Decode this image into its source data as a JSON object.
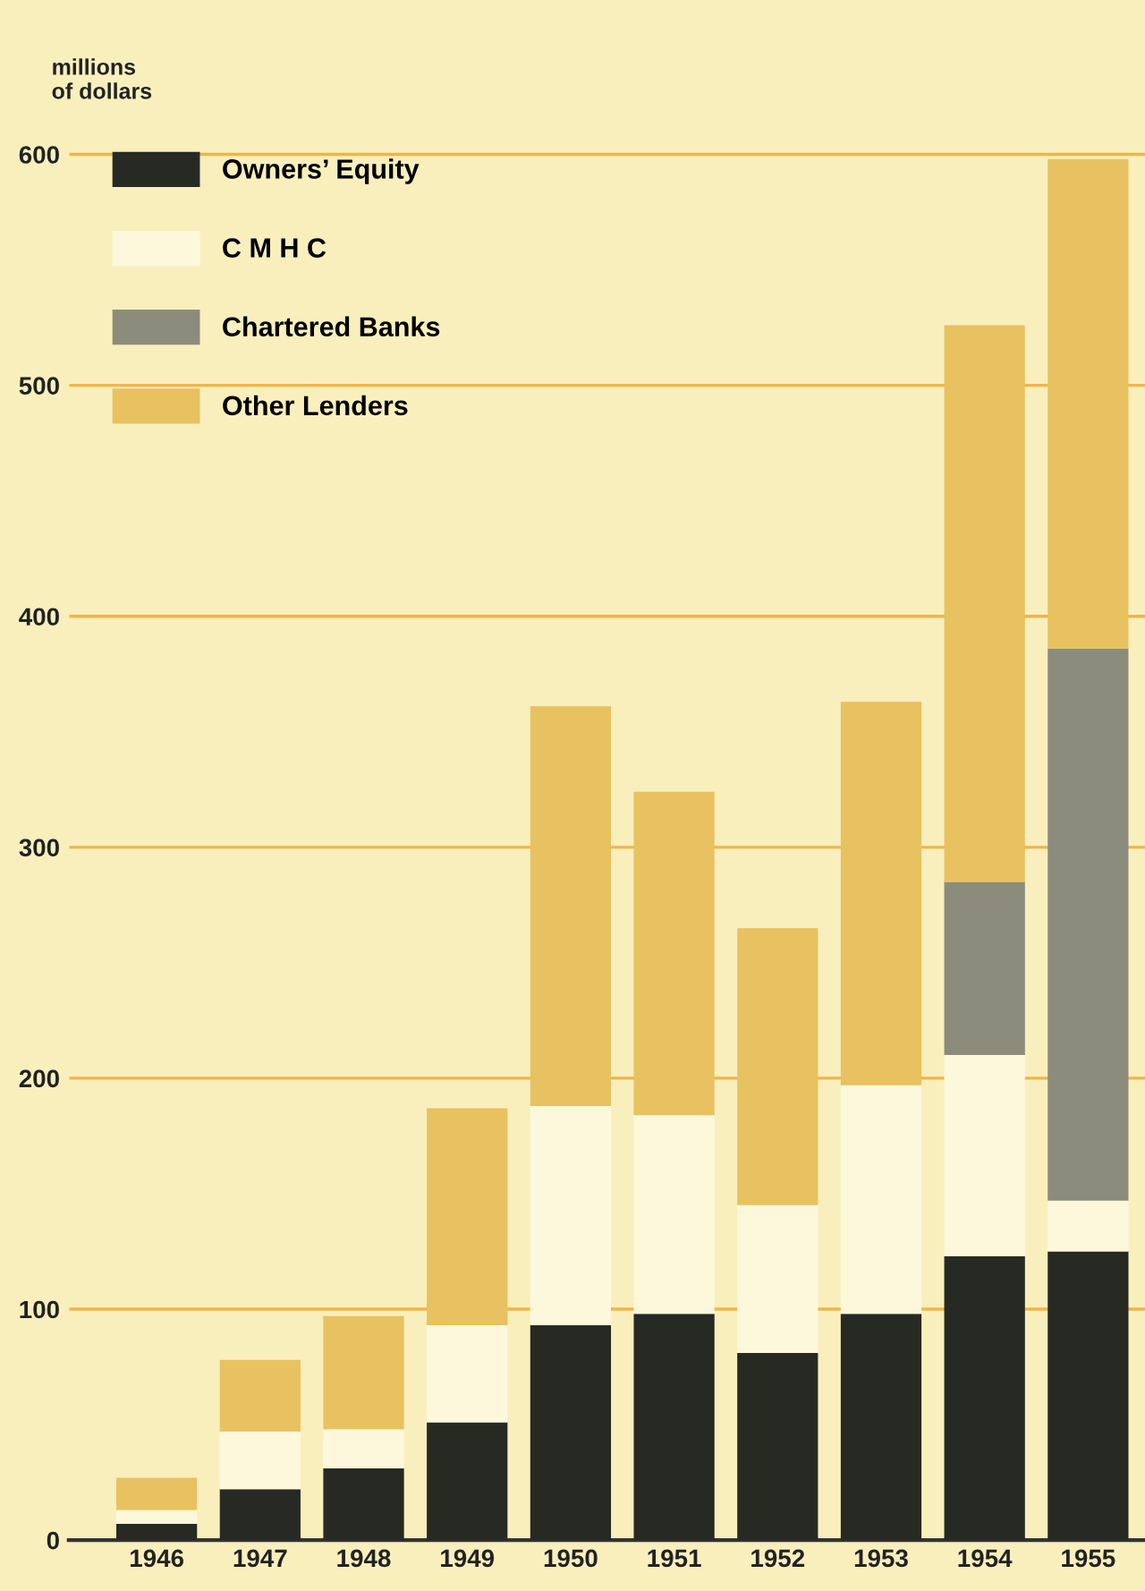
{
  "chart_data": {
    "type": "bar",
    "stacked": true,
    "ylabel": "millions\nof dollars",
    "categories": [
      "1946",
      "1947",
      "1948",
      "1949",
      "1950",
      "1951",
      "1952",
      "1953",
      "1954",
      "1955"
    ],
    "series": [
      {
        "name": "Owners’ Equity",
        "color": "#262a22",
        "values": [
          7,
          22,
          31,
          51,
          93,
          98,
          81,
          98,
          123,
          125
        ]
      },
      {
        "name": "C M H C",
        "color": "#fdf8dc",
        "values": [
          6,
          25,
          17,
          42,
          95,
          86,
          64,
          99,
          87,
          22
        ]
      },
      {
        "name": "Chartered Banks",
        "color": "#8c8c7c",
        "values": [
          null,
          null,
          null,
          null,
          null,
          null,
          null,
          null,
          75,
          239
        ]
      },
      {
        "name": "Other Lenders",
        "color": "#e8c160",
        "values": [
          14,
          31,
          49,
          94,
          173,
          140,
          120,
          166,
          241,
          212
        ]
      }
    ],
    "ylim": [
      0,
      620
    ],
    "yticks": [
      0,
      100,
      200,
      300,
      400,
      500,
      600
    ],
    "grid": "y",
    "legend": "top left"
  }
}
